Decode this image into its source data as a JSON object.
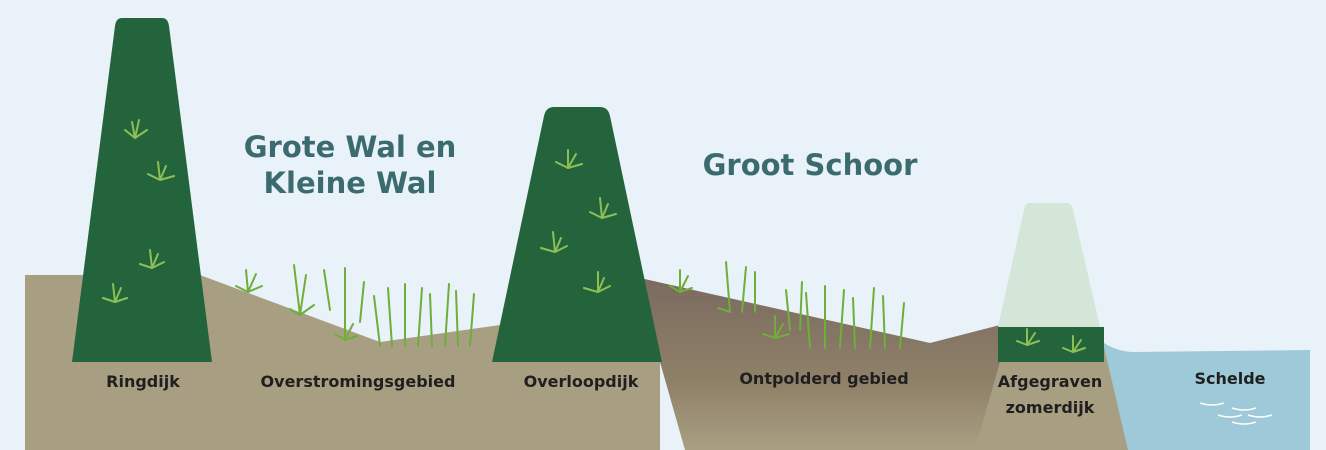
{
  "areas": [
    {
      "title": [
        "Grote Wal en",
        "Kleine Wal"
      ]
    },
    {
      "title": [
        "Groot Schoor"
      ]
    }
  ],
  "labels": [
    {
      "lines": [
        "Ringdijk"
      ]
    },
    {
      "lines": [
        "Overstromingsgebied"
      ]
    },
    {
      "lines": [
        "Overloopdijk"
      ]
    },
    {
      "lines": [
        "Ontpolderd gebied"
      ]
    },
    {
      "lines": [
        "Afgegraven",
        "zomerdijk"
      ]
    },
    {
      "lines": [
        "Schelde"
      ]
    }
  ]
}
